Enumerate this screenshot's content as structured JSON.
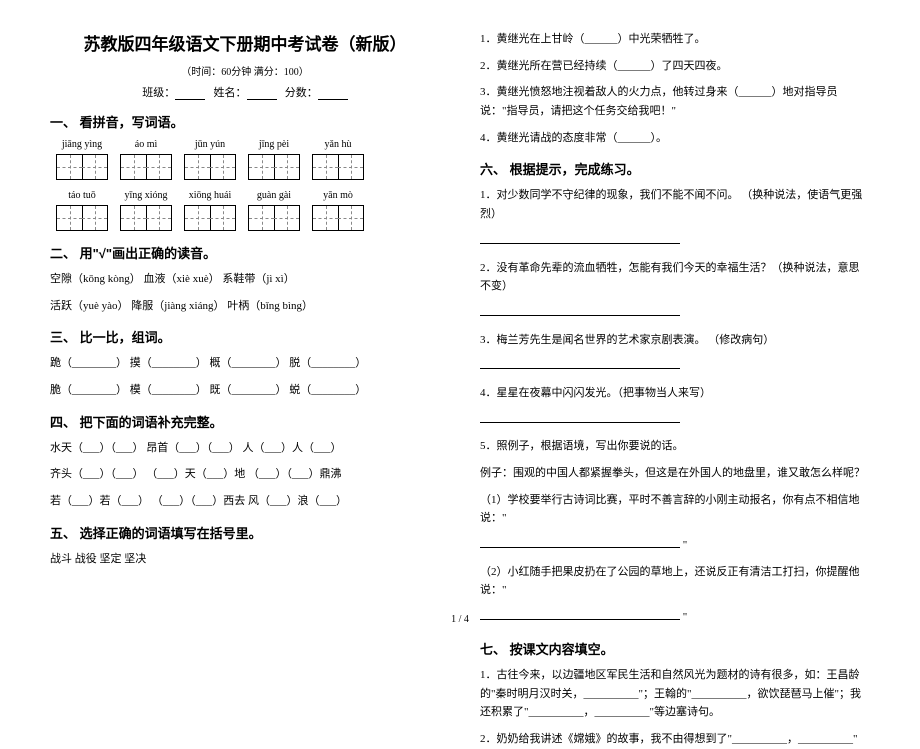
{
  "header": {
    "title": "苏教版四年级语文下册期中考试卷（新版）",
    "time_score": "（时间：60分钟  满分：100）",
    "class_label": "班级：",
    "name_label": "姓名：",
    "score_label": "分数："
  },
  "s1": {
    "heading": "一、 看拼音，写词语。",
    "row1": [
      "jiāng yìng",
      "áo mì",
      "jūn yún",
      "jīng pèi",
      "yǎn hù"
    ],
    "row2": [
      "táo tuō",
      "yīng xióng",
      "xiōng huái",
      "guàn gài",
      "yān mò"
    ]
  },
  "s2": {
    "heading": "二、 用\"√\"画出正确的读音。",
    "l1": "空隙（kōng  kòng）    血液（xiè  xuè）    系鞋带（jì  xì）",
    "l2": "活跃（yuè  yào）    降服（jiàng xiáng）  叶柄（bǐng  bìng）"
  },
  "s3": {
    "heading": "三、 比一比，组词。",
    "l1": "跪（________）  摸（________）  概（________）      脱（________）",
    "l2": "脆（________）  模（________）  既（________）      蜕（________）"
  },
  "s4": {
    "heading": "四、 把下面的词语补充完整。",
    "l1": "水天（___）（___）      昂首（___）（___）      人（___）人（___）",
    "l2": "齐头（___）（___）  （___）天（___）地    （___）（___）鼎沸",
    "l3": "若（___）若（___）  （___）（___）西去      风（___）浪（___）"
  },
  "s5": {
    "heading": "五、 选择正确的词语填写在括号里。",
    "words": "战斗  战役  坚定  坚决",
    "l1": "1．黄继光在上甘岭（______）中光荣牺牲了。",
    "l2": "2．黄继光所在营已经持续（______）了四天四夜。",
    "l3": "3．黄继光愤怒地注视着敌人的火力点，他转过身来（______）地对指导员说：\"指导员，请把这个任务交给我吧！\"",
    "l4": "4．黄继光请战的态度非常（______）。"
  },
  "s6": {
    "heading": "六、 根据提示，完成练习。",
    "l1": "1．对少数同学不守纪律的现象，我们不能不闻不问。 （换种说法，使语气更强烈）",
    "l2": "2．没有革命先辈的流血牺牲，怎能有我们今天的幸福生活？（换种说法，意思不变）",
    "l3": "3．梅兰芳先生是闻名世界的艺术家京剧表演。 （修改病句）",
    "l4": "4．星星在夜幕中闪闪发光。（把事物当人来写）",
    "l5": "5．照例子，根据语境，写出你要说的话。",
    "ex": "例子：围观的中国人都紧握拳头，但这是在外国人的地盘里，谁又敢怎么样呢？",
    "l5a": "（1）学校要举行古诗词比赛，平时不善言辞的小刚主动报名，你有点不相信地说：\"",
    "l5b": "（2）小红随手把果皮扔在了公园的草地上，还说反正有清洁工打扫，你提醒他说：\""
  },
  "s7": {
    "heading": "七、 按课文内容填空。",
    "l1": "1．古往今来，以边疆地区军民生活和自然风光为题材的诗有很多，如：王昌龄的\"秦时明月汉时关，__________\"；王翰的\"__________，欲饮琵琶马上催\"；我还积累了\"__________，__________\"等边塞诗句。",
    "l2": "2．奶奶给我讲述《嫦娥》的故事，我不由得想到了\"__________，__________\""
  },
  "footer": "1 / 4"
}
